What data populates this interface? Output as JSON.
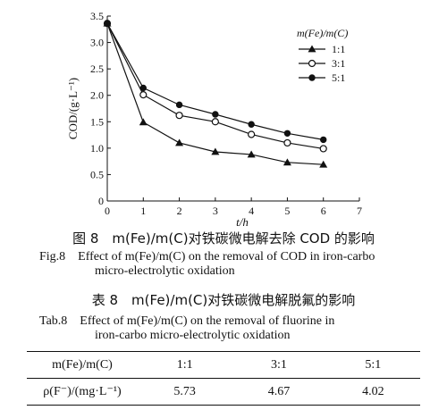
{
  "chart_data": {
    "type": "line",
    "xlabel": "t/h",
    "ylabel": "COD/(g·L⁻¹)",
    "xlim": [
      0,
      7
    ],
    "ylim": [
      0,
      3.5
    ],
    "xticks": [
      "0",
      "1",
      "2",
      "3",
      "4",
      "5",
      "6",
      "7"
    ],
    "yticks": [
      "0",
      "0.5",
      "1.0",
      "1.5",
      "2.0",
      "2.5",
      "3.0",
      "3.5"
    ],
    "legend_title": "m(Fe)/m(C)",
    "legend_position": "top-right",
    "grid": false,
    "x": [
      0,
      1,
      2,
      3,
      4,
      5,
      6
    ],
    "series": [
      {
        "name": "1:1",
        "marker": "triangle",
        "values": [
          3.36,
          1.49,
          1.1,
          0.93,
          0.88,
          0.73,
          0.69
        ]
      },
      {
        "name": "3:1",
        "marker": "open-circle",
        "values": [
          3.36,
          2.01,
          1.62,
          1.5,
          1.26,
          1.1,
          0.99
        ]
      },
      {
        "name": "5:1",
        "marker": "filled-circle",
        "values": [
          3.36,
          2.14,
          1.82,
          1.64,
          1.45,
          1.28,
          1.16
        ]
      }
    ]
  },
  "figure": {
    "caption_zh": "图 8　m(Fe)/m(C)对铁碳微电解去除 COD 的影响",
    "caption_en_1": "Fig.8　Effect of m(Fe)/m(C) on the removal of COD in iron-carbo",
    "caption_en_2": "micro-electrolytic oxidation"
  },
  "table": {
    "caption_zh": "表 8　m(Fe)/m(C)对铁碳微电解脱氟的影响",
    "caption_en_1": "Tab.8　Effect of m(Fe)/m(C) on the removal of fluorine in",
    "caption_en_2": "iron-carbo micro-electrolytic oxidation",
    "header": [
      "m(Fe)/m(C)",
      "1:1",
      "3:1",
      "5:1"
    ],
    "row": [
      "ρ(F⁻)/(mg·L⁻¹)",
      "5.73",
      "4.67",
      "4.02"
    ]
  }
}
